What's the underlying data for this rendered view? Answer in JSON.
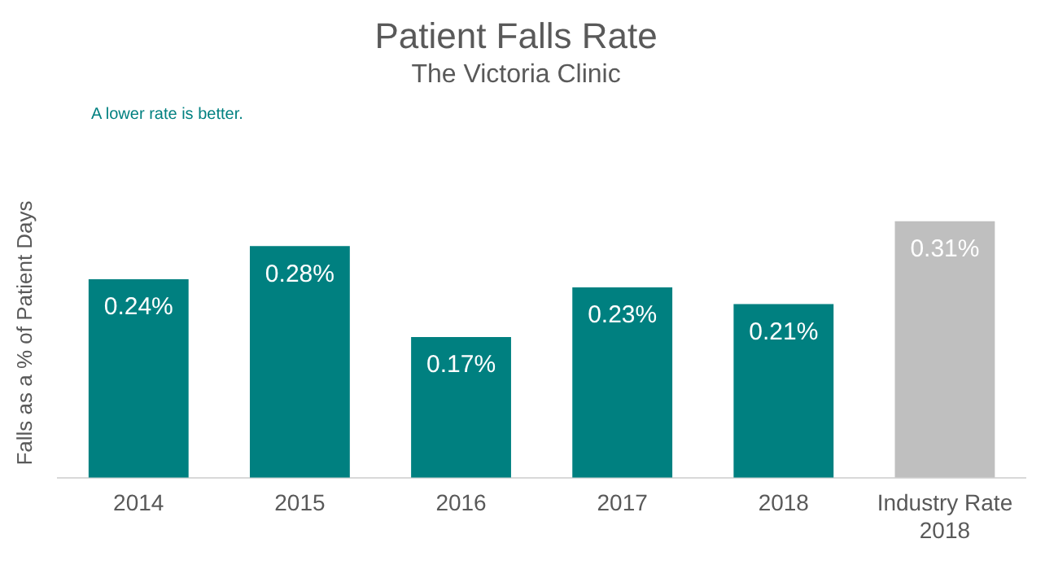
{
  "chart_data": {
    "type": "bar",
    "title": "Patient Falls Rate",
    "subtitle": "The Victoria Clinic",
    "ylabel": "Falls as a % of Patient Days",
    "annotations": [
      "A lower rate is better."
    ],
    "categories": [
      "2014",
      "2015",
      "2016",
      "2017",
      "2018",
      "Industry Rate 2018"
    ],
    "values": [
      0.24,
      0.28,
      0.17,
      0.23,
      0.21,
      0.31
    ],
    "colors": [
      "#008080",
      "#008080",
      "#008080",
      "#008080",
      "#008080",
      "#bfbfbf"
    ],
    "value_labels": [
      "0.24%",
      "0.28%",
      "0.17%",
      "0.23%",
      "0.21%",
      "0.31%"
    ],
    "grid": false,
    "legend": false
  }
}
